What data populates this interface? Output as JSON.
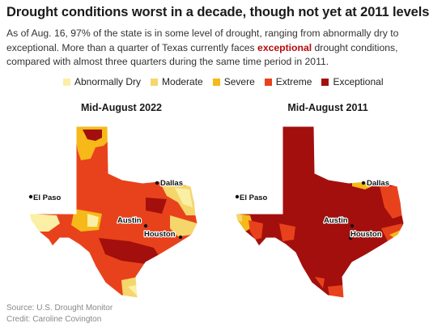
{
  "header": {
    "title": "Drought conditions worst in a decade, though not yet at 2011 levels",
    "desc_part1": "As of Aug. 16, 97% of the state is in some level of drought, ranging from abnormally dry to exceptional. More than a quarter of Texas currently faces ",
    "desc_highlight": "exceptional",
    "desc_part2": " drought conditions, compared with almost three quarters during the same time period in 2011."
  },
  "legend": [
    {
      "label": "Abnormally Dry",
      "color": "#fbefa6"
    },
    {
      "label": "Moderate",
      "color": "#f5d66b"
    },
    {
      "label": "Severe",
      "color": "#f6b919"
    },
    {
      "label": "Extreme",
      "color": "#e8421c"
    },
    {
      "label": "Exceptional",
      "color": "#a30f0c"
    }
  ],
  "maps": [
    {
      "title": "Mid-August 2022",
      "cities": [
        "El Paso",
        "Dallas",
        "Austin",
        "Houston"
      ]
    },
    {
      "title": "Mid-August 2011",
      "cities": [
        "El Paso",
        "Dallas",
        "Austin",
        "Houston"
      ]
    }
  ],
  "footer": {
    "source": "Source: U.S. Drought Monitor",
    "credit": "Credit: Caroline Covington"
  }
}
